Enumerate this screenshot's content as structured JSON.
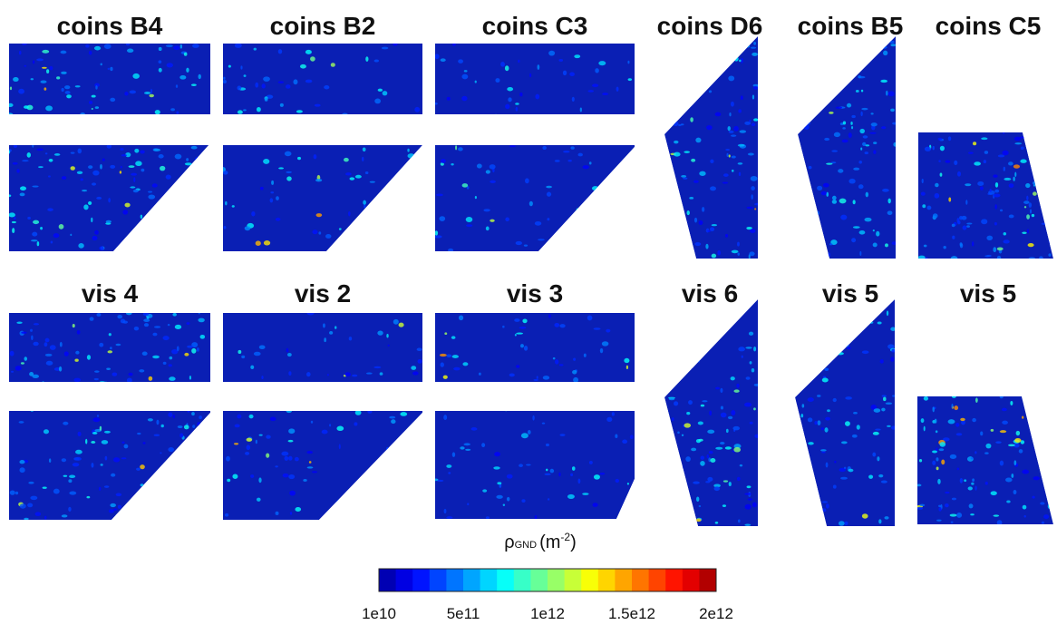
{
  "panels": [
    {
      "title": "coins B4"
    },
    {
      "title": "coins B2"
    },
    {
      "title": "coins C3"
    },
    {
      "title": "coins D6"
    },
    {
      "title": "coins B5"
    },
    {
      "title": "coins C5"
    },
    {
      "title": "vis 4"
    },
    {
      "title": "vis 2"
    },
    {
      "title": "vis 3"
    },
    {
      "title": "vis 6"
    },
    {
      "title": "vis 5"
    },
    {
      "title": "vis 5"
    }
  ],
  "colorbar": {
    "label": {
      "symbol": "ρ",
      "subscript": "GND",
      "unit_base": "(m",
      "unit_exponent": "-2",
      "unit_close": ")"
    },
    "ticks": [
      "1e10",
      "5e11",
      "1e12",
      "1.5e12",
      "2e12"
    ]
  }
}
